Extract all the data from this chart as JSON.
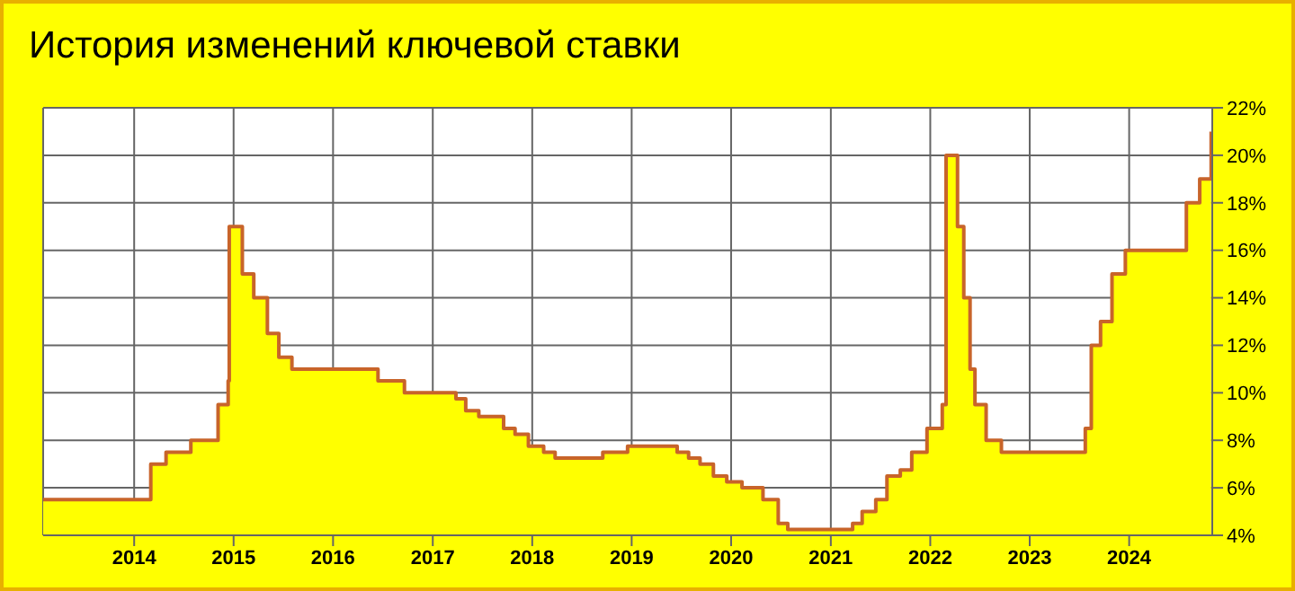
{
  "chart_data": {
    "type": "area",
    "title": "История изменений ключевой ставки",
    "x": [
      "2013-02-01",
      "2013-09-13",
      "2014-03-03",
      "2014-04-28",
      "2014-07-28",
      "2014-11-05",
      "2014-12-12",
      "2014-12-16",
      "2015-02-02",
      "2015-03-16",
      "2015-05-05",
      "2015-06-16",
      "2015-08-03",
      "2016-06-14",
      "2016-09-19",
      "2017-03-27",
      "2017-05-02",
      "2017-06-19",
      "2017-09-18",
      "2017-10-30",
      "2017-12-18",
      "2018-02-12",
      "2018-03-26",
      "2018-09-17",
      "2018-12-17",
      "2019-06-17",
      "2019-07-29",
      "2019-09-09",
      "2019-10-28",
      "2019-12-16",
      "2020-02-10",
      "2020-04-27",
      "2020-06-22",
      "2020-07-27",
      "2021-03-22",
      "2021-04-26",
      "2021-06-15",
      "2021-07-26",
      "2021-09-13",
      "2021-10-25",
      "2021-12-20",
      "2022-02-14",
      "2022-02-28",
      "2022-04-11",
      "2022-05-04",
      "2022-05-27",
      "2022-06-14",
      "2022-07-25",
      "2022-09-19",
      "2023-07-24",
      "2023-08-15",
      "2023-09-18",
      "2023-10-30",
      "2023-12-18",
      "2024-07-29",
      "2024-09-16",
      "2024-10-28"
    ],
    "series": [
      {
        "color": "#ffff00",
        "values": [
          5.5,
          5.5,
          7,
          7.5,
          8,
          9.5,
          10.5,
          17,
          15,
          14,
          12.5,
          11.5,
          11,
          10.5,
          10,
          9.75,
          9.25,
          9,
          8.5,
          8.25,
          7.75,
          7.5,
          7.25,
          7.5,
          7.75,
          7.5,
          7.25,
          7,
          6.5,
          6.25,
          6,
          5.5,
          4.5,
          4.25,
          4.5,
          5,
          5.5,
          6.5,
          6.75,
          7.5,
          8.5,
          9.5,
          20,
          17,
          14,
          11,
          9.5,
          8,
          7.5,
          8.5,
          12,
          13,
          15,
          16,
          18,
          19,
          21
        ]
      },
      {
        "type": "step",
        "color": "#c8642a",
        "values": [
          5.5,
          5.5,
          7,
          7.5,
          8,
          9.5,
          10.5,
          17,
          15,
          14,
          12.5,
          11.5,
          11,
          10.5,
          10,
          9.75,
          9.25,
          9,
          8.5,
          8.25,
          7.75,
          7.5,
          7.25,
          7.5,
          7.75,
          7.5,
          7.25,
          7,
          6.5,
          6.25,
          6,
          5.5,
          4.5,
          4.25,
          4.5,
          5,
          5.5,
          6.5,
          6.75,
          7.5,
          8.5,
          9.5,
          20,
          17,
          14,
          11,
          9.5,
          8,
          7.5,
          8.5,
          12,
          13,
          15,
          16,
          18,
          19,
          21
        ]
      }
    ],
    "xlim": [
      "2013-02-01",
      "2024-11-01"
    ],
    "xticks": [
      "2014",
      "2015",
      "2016",
      "2017",
      "2018",
      "2019",
      "2020",
      "2021",
      "2022",
      "2023",
      "2024"
    ],
    "ylim": [
      4,
      22
    ],
    "yticks": [
      {
        "value": 4,
        "label": "4%"
      },
      {
        "value": 6,
        "label": "6%"
      },
      {
        "value": 8,
        "label": "8%"
      },
      {
        "value": 10,
        "label": "10%"
      },
      {
        "value": 12,
        "label": "12%"
      },
      {
        "value": 14,
        "label": "14%"
      },
      {
        "value": 16,
        "label": "16%"
      },
      {
        "value": 18,
        "label": "18%"
      },
      {
        "value": 20,
        "label": "20%"
      },
      {
        "value": 22,
        "label": "22%"
      }
    ],
    "grid": true,
    "legend": false
  }
}
